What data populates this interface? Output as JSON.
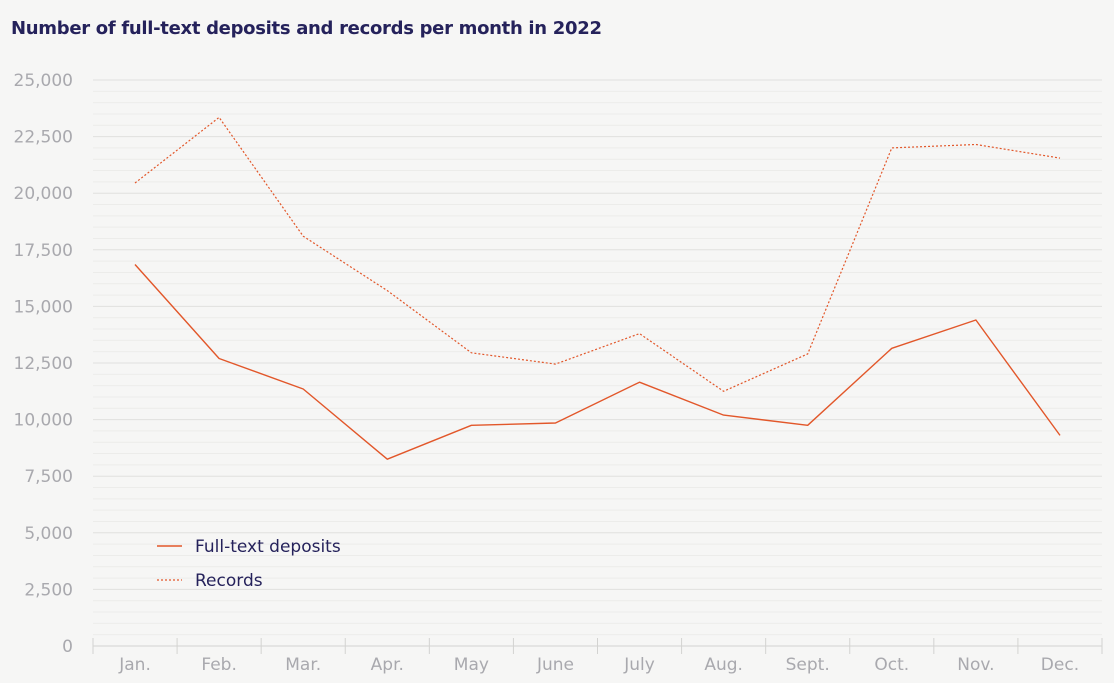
{
  "chart_data": {
    "type": "line",
    "title": "Number of full-text deposits and records per month in 2022",
    "xlabel": "",
    "ylabel": "",
    "categories": [
      "Jan.",
      "Feb.",
      "Mar.",
      "Apr.",
      "May",
      "June",
      "July",
      "Aug.",
      "Sept.",
      "Oct.",
      "Nov.",
      "Dec."
    ],
    "ylim": [
      0,
      25000
    ],
    "yticks": [
      0,
      2500,
      5000,
      7500,
      10000,
      12500,
      15000,
      17500,
      20000,
      22500,
      25000
    ],
    "ytick_labels": [
      "0",
      "2,500",
      "5,000",
      "7,500",
      "10,000",
      "12,500",
      "15,000",
      "17,500",
      "20,000",
      "22,500",
      "25,000"
    ],
    "grid": true,
    "legend_position": "bottom-left",
    "series": [
      {
        "name": "Full-text deposits",
        "style": "solid",
        "color": "#e2572a",
        "values": [
          16850,
          12700,
          11350,
          8250,
          9750,
          9850,
          11650,
          10200,
          9750,
          13150,
          14400,
          9300
        ]
      },
      {
        "name": "Records",
        "style": "dotted",
        "color": "#e2572a",
        "values": [
          20450,
          23350,
          18100,
          15700,
          12950,
          12450,
          13800,
          11250,
          12900,
          22000,
          22150,
          21550
        ]
      }
    ]
  }
}
